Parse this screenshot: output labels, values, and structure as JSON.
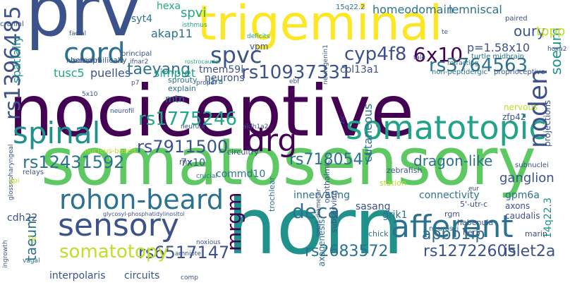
{
  "words": [
    {
      "text": "nociceptive",
      "color": "#440154"
    },
    {
      "text": "somatosensory",
      "color": "#5ec962"
    },
    {
      "text": "horn",
      "color": "#21918c"
    },
    {
      "text": "prv",
      "color": "#3b528b"
    },
    {
      "text": "trigeminal",
      "color": "#fde725"
    },
    {
      "text": "spinal",
      "color": "#21918c"
    },
    {
      "text": "somatotopic",
      "color": "#20a386"
    },
    {
      "text": "afferent",
      "color": "#2c728e"
    },
    {
      "text": "sensory",
      "color": "#3b528b"
    },
    {
      "text": "rohon-beard",
      "color": "#2c728e"
    },
    {
      "text": "drg",
      "color": "#440154"
    },
    {
      "text": "cord",
      "color": "#2c728e"
    },
    {
      "text": "spvc",
      "color": "#3b528b"
    },
    {
      "text": "cyp4f8",
      "color": "#3b528b"
    },
    {
      "text": "6x10",
      "color": "#440154"
    },
    {
      "text": "noden",
      "color": "#3b528b"
    },
    {
      "text": "rs3764563",
      "color": "#2c728e"
    },
    {
      "text": "rs10937331",
      "color": "#3b528b"
    },
    {
      "text": "rs1775246",
      "color": "#22a884"
    },
    {
      "text": "rs7911500",
      "color": "#3b528b"
    },
    {
      "text": "rs12431592",
      "color": "#2c728e"
    },
    {
      "text": "rs7180547",
      "color": "#2c728e"
    },
    {
      "text": "rs6517147",
      "color": "#3b528b"
    },
    {
      "text": "rs2683572",
      "color": "#2c728e"
    },
    {
      "text": "rs12722605",
      "color": "#3b528b"
    },
    {
      "text": "rs1396485",
      "color": "#3b528b"
    },
    {
      "text": "somatotopy",
      "color": "#bddf26"
    },
    {
      "text": "deca",
      "color": "#2c728e"
    },
    {
      "text": "mrgm",
      "color": "#440154"
    },
    {
      "text": "taeyang",
      "color": "#2c728e"
    },
    {
      "text": "apbb1ip",
      "color": "#31688e"
    },
    {
      "text": "dragon-like",
      "color": "#2c728e"
    },
    {
      "text": "ganglion",
      "color": "#3b528b"
    },
    {
      "text": "islet2a",
      "color": "#3b528b"
    },
    {
      "text": "taeum",
      "color": "#2c728e"
    },
    {
      "text": "spatially",
      "color": "#21918c"
    },
    {
      "text": "soeum",
      "color": "#21918c"
    },
    {
      "text": "homeodomain",
      "color": "#2c728e"
    },
    {
      "text": "lemniscal",
      "color": "#2c728e"
    },
    {
      "text": "oury",
      "color": "#3b528b"
    },
    {
      "text": "spvi",
      "color": "#22a884"
    },
    {
      "text": "akap11",
      "color": "#2c728e"
    },
    {
      "text": "hexa",
      "color": "#22a884"
    },
    {
      "text": "syt4",
      "color": "#2c728e"
    },
    {
      "text": "tppp",
      "color": "#bddf26"
    },
    {
      "text": "p=1.58x10",
      "color": "#3b528b"
    },
    {
      "text": "tusc5",
      "color": "#22a884"
    },
    {
      "text": "puelles",
      "color": "#3b528b"
    },
    {
      "text": "simplet",
      "color": "#20a386"
    },
    {
      "text": "tmem59l",
      "color": "#3b528b"
    },
    {
      "text": "col13a1",
      "color": "#3b528b"
    },
    {
      "text": "neurons",
      "color": "#3b528b"
    },
    {
      "text": "mtn",
      "color": "#2c728e"
    },
    {
      "text": "cutaneous",
      "color": "#2c728e"
    },
    {
      "text": "commd10",
      "color": "#2c728e"
    },
    {
      "text": "7x10",
      "color": "#3b528b"
    },
    {
      "text": "innervating",
      "color": "#2c728e"
    },
    {
      "text": "sasang",
      "color": "#3b528b"
    },
    {
      "text": "grik1",
      "color": "#2c728e"
    },
    {
      "text": "connectivity",
      "color": "#2c728e"
    },
    {
      "text": "gpm6a",
      "color": "#2c728e"
    },
    {
      "text": "axons",
      "color": "#3b528b"
    },
    {
      "text": "caudalis",
      "color": "#3b528b"
    },
    {
      "text": "14q22.3",
      "color": "#21918c"
    },
    {
      "text": "cdh22",
      "color": "#3b528b"
    },
    {
      "text": "interpolaris",
      "color": "#3b528b"
    },
    {
      "text": "circuits",
      "color": "#3b528b"
    },
    {
      "text": "nervous",
      "color": "#bddf26"
    },
    {
      "text": "zfp42",
      "color": "#3b528b"
    },
    {
      "text": "projections",
      "color": "#3b528b"
    },
    {
      "text": "vpm",
      "color": "#3b528b"
    },
    {
      "text": "explain",
      "color": "#2c728e"
    },
    {
      "text": "sprouty",
      "color": "#2c728e"
    },
    {
      "text": "homophilically",
      "color": "#3b528b"
    },
    {
      "text": "habenula",
      "color": "#3b528b"
    },
    {
      "text": "rgm",
      "color": "#3b528b"
    },
    {
      "text": "chick",
      "color": "#2c728e"
    },
    {
      "text": "her5",
      "color": "#3b528b"
    },
    {
      "text": "marin",
      "color": "#3b528b"
    },
    {
      "text": "axogenesis",
      "color": "#2c728e"
    },
    {
      "text": "station",
      "color": "#bddf26"
    },
    {
      "text": "trochlear",
      "color": "#2c728e"
    },
    {
      "text": "subserving",
      "color": "#3b528b"
    },
    {
      "text": "ty",
      "color": "#bddf26"
    },
    {
      "text": "zebrafish",
      "color": "#3b528b"
    },
    {
      "text": "ophthalmic",
      "color": "#3b528b"
    },
    {
      "text": "circuitry",
      "color": "#3b528b"
    },
    {
      "text": "il2ra",
      "color": "#2c728e"
    },
    {
      "text": "5'-utr-c",
      "color": "#3b528b"
    },
    {
      "text": "neurosci",
      "color": "#2c728e"
    },
    {
      "text": "nucleus-based",
      "color": "#bddf26"
    },
    {
      "text": "hindbrain",
      "color": "#3b528b"
    },
    {
      "text": "principal",
      "color": "#3b528b"
    },
    {
      "text": "ifnar2",
      "color": "#3b528b"
    },
    {
      "text": "isthmus",
      "color": "#22a884"
    },
    {
      "text": "deficits",
      "color": "#22a884"
    },
    {
      "text": "15q22.2",
      "color": "#2c728e"
    },
    {
      "text": "paired",
      "color": "#3b528b"
    },
    {
      "text": "turtle midbrain",
      "color": "#2c728e"
    },
    {
      "text": "retracting",
      "color": "#2c728e"
    },
    {
      "text": "proprioceptive",
      "color": "#3b528b"
    },
    {
      "text": "non-peptidergic",
      "color": "#2c728e"
    },
    {
      "text": "proper",
      "color": "#3b528b"
    },
    {
      "text": "neurula",
      "color": "#3b528b"
    },
    {
      "text": "aldh1a2",
      "color": "#3b528b"
    },
    {
      "text": "crucial",
      "color": "#2c728e"
    },
    {
      "text": "relays",
      "color": "#3b528b"
    },
    {
      "text": "glossopharyngeal",
      "color": "#3b528b"
    },
    {
      "text": "vagal",
      "color": "#2c728e"
    },
    {
      "text": "ingrowth",
      "color": "#3b528b"
    },
    {
      "text": "amniote",
      "color": "#3b528b"
    },
    {
      "text": "noxious",
      "color": "#3b528b"
    },
    {
      "text": "comp",
      "color": "#3b528b"
    },
    {
      "text": "subnuclei",
      "color": "#3b528b"
    },
    {
      "text": "cranial",
      "color": "#3b528b"
    },
    {
      "text": "facial",
      "color": "#3b528b"
    },
    {
      "text": "neurofil",
      "color": "#3b528b"
    },
    {
      "text": "rostrocaudal",
      "color": "#22a884"
    },
    {
      "text": "neurogenin1",
      "color": "#3b528b"
    },
    {
      "text": "small-diameter",
      "color": "#3b528b"
    },
    {
      "text": "glycosyl-phosphatidylinositol",
      "color": "#3b528b"
    },
    {
      "text": "tale",
      "color": "#3b528b"
    },
    {
      "text": "eur",
      "color": "#3b528b"
    },
    {
      "text": "gpi",
      "color": "#bddf26"
    },
    {
      "text": "p7",
      "color": "#3b528b"
    },
    {
      "text": "5x10",
      "color": "#3b528b"
    },
    {
      "text": "hoxa2",
      "color": "#3b528b"
    },
    {
      "text": "ebf",
      "color": "#3b528b"
    },
    {
      "text": "te",
      "color": "#3b528b"
    },
    {
      "text": "zic",
      "color": "#3b528b"
    },
    {
      "text": "rnx",
      "color": "#3b528b"
    }
  ]
}
